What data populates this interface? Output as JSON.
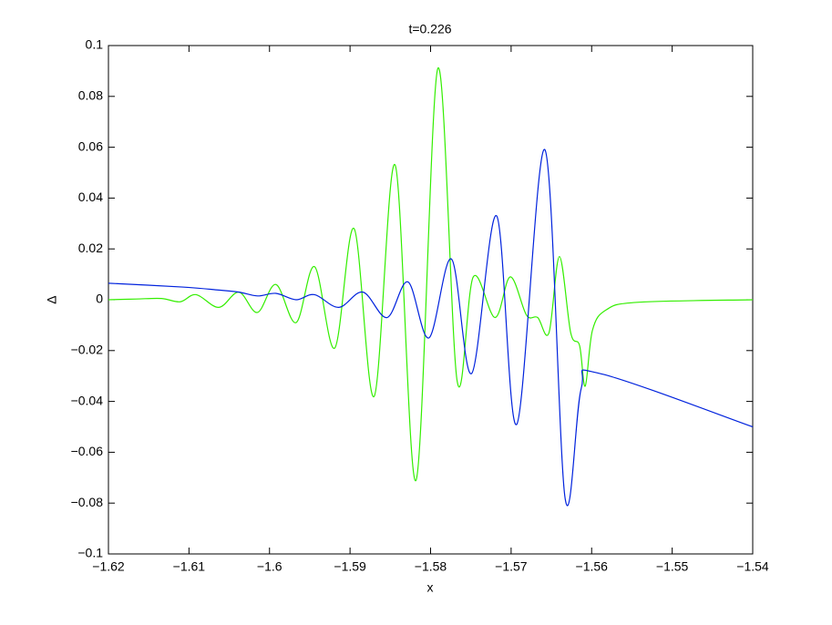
{
  "chart_data": {
    "type": "line",
    "title": "t=0.226",
    "xlabel": "x",
    "ylabel": "Δ",
    "xlim": [
      -1.62,
      -1.54
    ],
    "xticks": [
      {
        "value": -1.62,
        "label": "−1.62"
      },
      {
        "value": -1.61,
        "label": "−1.61"
      },
      {
        "value": -1.6,
        "label": "−1.6"
      },
      {
        "value": -1.59,
        "label": "−1.59"
      },
      {
        "value": -1.58,
        "label": "−1.58"
      },
      {
        "value": -1.57,
        "label": "−1.57"
      },
      {
        "value": -1.56,
        "label": "−1.56"
      },
      {
        "value": -1.55,
        "label": "−1.55"
      },
      {
        "value": -1.54,
        "label": "−1.54"
      }
    ],
    "ylim": [
      -0.1,
      0.1
    ],
    "yticks": [
      {
        "value": -0.1,
        "label": "−0.1"
      },
      {
        "value": -0.08,
        "label": "−0.08"
      },
      {
        "value": -0.06,
        "label": "−0.06"
      },
      {
        "value": -0.04,
        "label": "−0.04"
      },
      {
        "value": -0.02,
        "label": "−0.02"
      },
      0,
      0.02,
      0.04,
      0.06,
      0.08,
      0.1
    ],
    "series": [
      {
        "color": "#33ee00",
        "x": [
          -1.62,
          -1.6165,
          -1.6134,
          -1.6111,
          -1.6091,
          -1.6063,
          -1.6038,
          -1.6015,
          -1.5992,
          -1.5967,
          -1.5944,
          -1.5919,
          -1.5895,
          -1.587,
          -1.5844,
          -1.5818,
          -1.5791,
          -1.5767,
          -1.5747,
          -1.572,
          -1.5701,
          -1.5681,
          -1.5667,
          -1.5653,
          -1.564,
          -1.5626,
          -1.5615,
          -1.5608,
          -1.5599,
          -1.5582,
          -1.5543,
          -1.54
        ],
        "values": [
          0,
          0.0003,
          0.0005,
          -0.0008,
          0.002,
          -0.003,
          0.003,
          -0.005,
          0.006,
          -0.009,
          0.013,
          -0.019,
          0.028,
          -0.038,
          0.053,
          -0.071,
          0.091,
          -0.032,
          0.009,
          -0.007,
          0.009,
          -0.006,
          -0.007,
          -0.013,
          0.017,
          -0.013,
          -0.018,
          -0.034,
          -0.012,
          -0.004,
          -0.001,
          0
        ]
      },
      {
        "color": "#0022dd",
        "x": [
          -1.62,
          -1.6108,
          -1.6063,
          -1.6038,
          -1.6015,
          -1.5992,
          -1.5967,
          -1.5944,
          -1.5914,
          -1.5884,
          -1.5854,
          -1.5828,
          -1.5802,
          -1.5774,
          -1.5749,
          -1.5718,
          -1.5693,
          -1.5658,
          -1.5633,
          -1.5613,
          -1.559,
          -1.54
        ],
        "values": [
          0.0065,
          0.005,
          0.0038,
          0.003,
          0.0015,
          0.0025,
          0,
          0.002,
          -0.003,
          0.003,
          -0.007,
          0.007,
          -0.015,
          0.016,
          -0.029,
          0.033,
          -0.049,
          0.059,
          -0.078,
          -0.035,
          -0.029,
          -0.05
        ]
      }
    ]
  }
}
